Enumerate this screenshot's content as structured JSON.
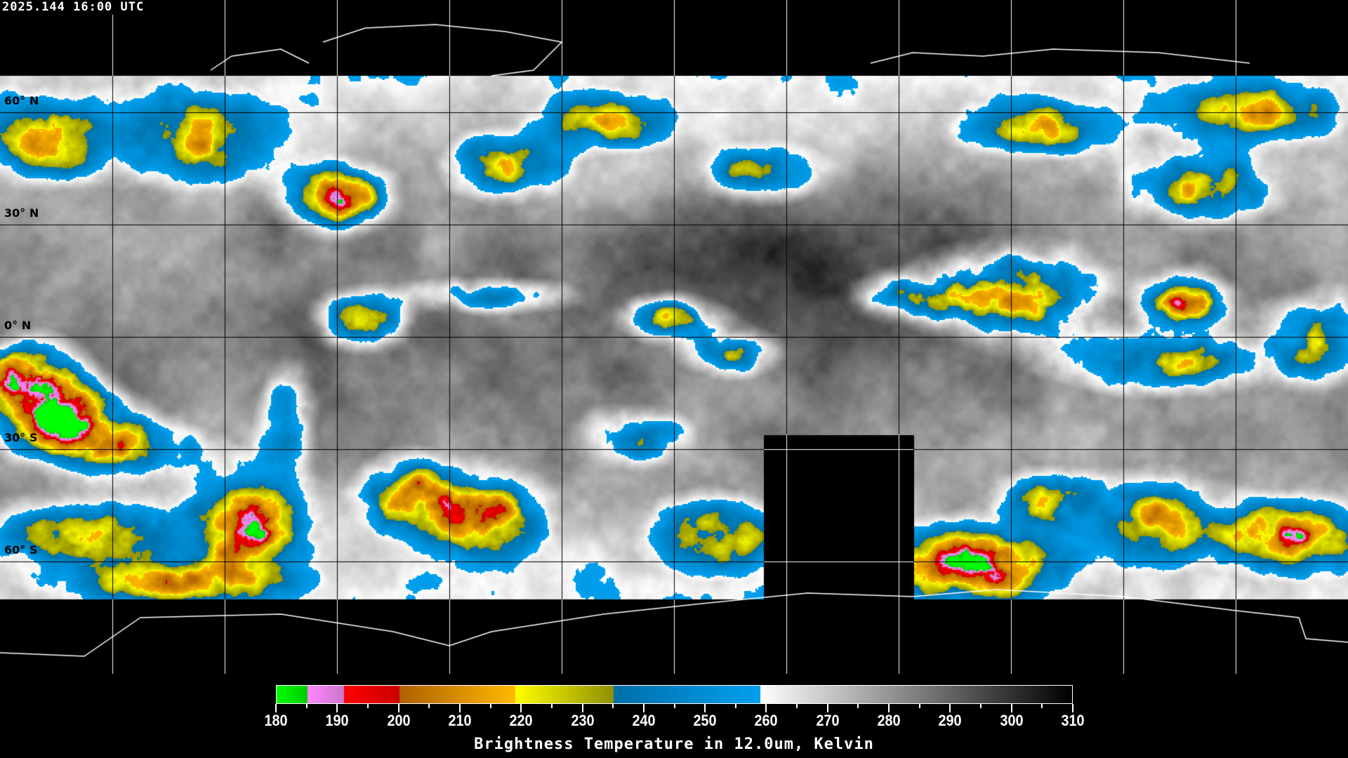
{
  "header": {
    "timestamp": "2025.144 16:00 UTC"
  },
  "map": {
    "projection": "equirectangular",
    "grid_spacing_deg": 30,
    "lat_labels": [
      "60° N",
      "30° N",
      "0° N",
      "30° S",
      "60° S"
    ],
    "missing_data_color": "#000000",
    "coastline_colors": {
      "over_data": "#000000",
      "over_missing": "#ffffff"
    }
  },
  "colorbar": {
    "title": "Brightness Temperature in 12.0um, Kelvin",
    "min": 180,
    "max": 310,
    "tick_labels": [
      "180",
      "190",
      "200",
      "210",
      "220",
      "230",
      "240",
      "250",
      "260",
      "270",
      "280",
      "290",
      "300",
      "310"
    ],
    "minor_step": 5,
    "segments": [
      {
        "from": 180,
        "to": 185,
        "start": "#00ff00",
        "end": "#00cc00"
      },
      {
        "from": 185,
        "to": 191,
        "start": "#ff88ff",
        "end": "#cc77cc"
      },
      {
        "from": 191,
        "to": 200,
        "start": "#ff0000",
        "end": "#cc0000"
      },
      {
        "from": 200,
        "to": 219,
        "start": "#b06000",
        "end": "#ffbb00"
      },
      {
        "from": 219,
        "to": 235,
        "start": "#ffff00",
        "end": "#909000"
      },
      {
        "from": 235,
        "to": 259,
        "start": "#0070a8",
        "end": "#00a0f0"
      },
      {
        "from": 259,
        "to": 310,
        "start": "#ffffff",
        "end": "#000000"
      }
    ]
  }
}
